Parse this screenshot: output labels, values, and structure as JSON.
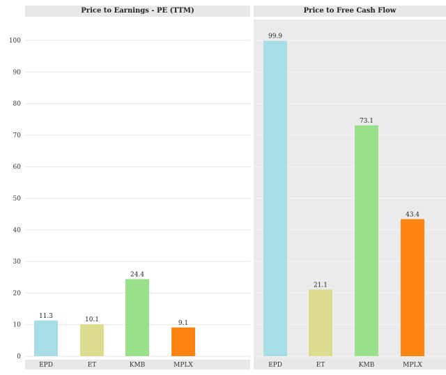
{
  "chart_data": [
    {
      "type": "bar",
      "title": "Price to Earnings - PE (TTM)",
      "categories": [
        "EPD",
        "ET",
        "KMB",
        "MPLX"
      ],
      "values": [
        11.3,
        10.1,
        24.4,
        9.1
      ],
      "data_labels": [
        "11.3",
        "10.1",
        "24.4",
        "9.1"
      ],
      "ylim": [
        0,
        100
      ],
      "yticks": [
        0,
        10,
        20,
        30,
        40,
        50,
        60,
        70,
        80,
        90,
        100
      ],
      "grid": true,
      "colors": [
        "#a6dde6",
        "#dcdc8e",
        "#98e08a",
        "#ff8412"
      ]
    },
    {
      "type": "bar",
      "title": "Price to Free Cash Flow",
      "categories": [
        "EPD",
        "ET",
        "KMB",
        "MPLX"
      ],
      "values": [
        99.9,
        21.1,
        73.1,
        43.4
      ],
      "data_labels": [
        "99.9",
        "21.1",
        "73.1",
        "43.4"
      ],
      "ylim": [
        0,
        100
      ],
      "grid": true,
      "colors": [
        "#a6dde6",
        "#dcdc8e",
        "#98e08a",
        "#ff8412"
      ]
    }
  ]
}
